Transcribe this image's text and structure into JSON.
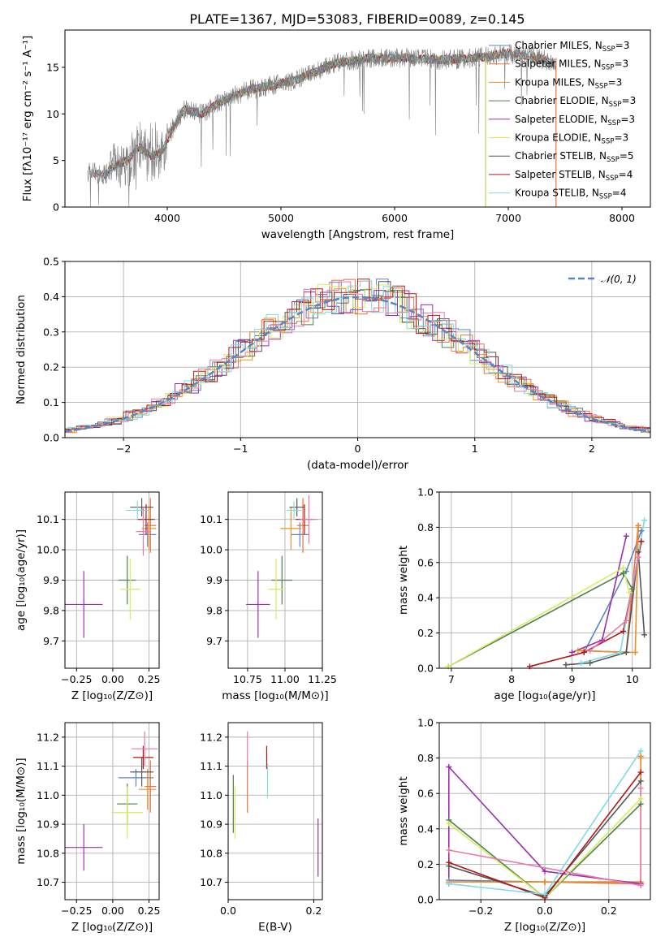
{
  "figure": {
    "title": "PLATE=1367, MJD=53083, FIBERID=0089, z=0.145"
  },
  "colors": {
    "chabrier_miles": "#5b84c4",
    "salpeter_miles": "#e8703a",
    "kroupa_miles": "#e9902a",
    "chabrier_elodie": "#4e7e4e",
    "salpeter_elodie": "#9b2fae",
    "kroupa_elodie": "#d4ee5e",
    "chabrier_stelib": "#555555",
    "salpeter_stelib": "#b01717",
    "kroupa_stelib": "#7fd9e6",
    "data": "#7f7f7f",
    "pink": "#e879a8",
    "grid": "#b0b0b0"
  },
  "chart_data": [
    {
      "id": "spectrum",
      "type": "line",
      "xlabel": "wavelength [Angstrom, rest frame]",
      "ylabel": "Flux [fλ10⁻¹⁷ erg cm⁻² s⁻¹ A⁻¹]",
      "xlim": [
        3100,
        8250
      ],
      "ylim": [
        0,
        19
      ],
      "xticks": [
        "4000",
        "5000",
        "6000",
        "7000",
        "8000"
      ],
      "yticks": [
        "0",
        "5",
        "10",
        "15"
      ],
      "grid": false,
      "legend_position": "right",
      "continuum": {
        "x": [
          3300,
          3450,
          3550,
          3650,
          3750,
          3850,
          3950,
          4050,
          4150,
          4300,
          4500,
          4700,
          4900,
          5100,
          5300,
          5500,
          5800,
          6100,
          6400,
          6700,
          7000,
          7200,
          7400
        ],
        "y": [
          3.8,
          3.5,
          4.5,
          5.0,
          6.5,
          5.5,
          5.8,
          8.5,
          10.5,
          10.0,
          11.5,
          12.5,
          13.0,
          13.5,
          14.5,
          15.5,
          16.0,
          16.0,
          15.8,
          16.0,
          16.5,
          16.2,
          15.5
        ]
      },
      "drop_lines": [
        {
          "name": "Salpeter ELODIE",
          "x": 6800
        },
        {
          "name": "Kroupa ELODIE",
          "x": 6800
        },
        {
          "name": "Salpeter MILES",
          "x": 7420
        }
      ],
      "legend": [
        {
          "label": "Chabrier MILES, N",
          "sub": "SSP",
          "suffix": "=3",
          "color": "chabrier_miles"
        },
        {
          "label": "Salpeter MILES, N",
          "sub": "SSP",
          "suffix": "=3",
          "color": "salpeter_miles"
        },
        {
          "label": "Kroupa MILES, N",
          "sub": "SSP",
          "suffix": "=3",
          "color": "kroupa_miles"
        },
        {
          "label": "Chabrier ELODIE, N",
          "sub": "SSP",
          "suffix": "=3",
          "color": "chabrier_elodie"
        },
        {
          "label": "Salpeter ELODIE, N",
          "sub": "SSP",
          "suffix": "=3",
          "color": "salpeter_elodie"
        },
        {
          "label": "Kroupa ELODIE, N",
          "sub": "SSP",
          "suffix": "=3",
          "color": "kroupa_elodie"
        },
        {
          "label": "Chabrier STELIB, N",
          "sub": "SSP",
          "suffix": "=5",
          "color": "chabrier_stelib"
        },
        {
          "label": "Salpeter STELIB, N",
          "sub": "SSP",
          "suffix": "=4",
          "color": "salpeter_stelib"
        },
        {
          "label": "Kroupa STELIB, N",
          "sub": "SSP",
          "suffix": "=4",
          "color": "kroupa_stelib"
        }
      ]
    },
    {
      "id": "residuals",
      "type": "line",
      "xlabel": "(data-model)/error",
      "ylabel": "Normed distribution",
      "xlim": [
        -2.5,
        2.5
      ],
      "ylim": [
        0,
        0.5
      ],
      "xticks": [
        "−2",
        "−1",
        "0",
        "1",
        "2"
      ],
      "xtick_values": [
        -2,
        -1,
        0,
        1,
        2
      ],
      "yticks": [
        "0.0",
        "0.1",
        "0.2",
        "0.3",
        "0.4",
        "0.5"
      ],
      "ytick_values": [
        0,
        0.1,
        0.2,
        0.3,
        0.4,
        0.5
      ],
      "grid": true,
      "legend_position": "top-right",
      "gaussian_label": "𝒩(0, 1)",
      "gaussian": {
        "mean": 0,
        "sigma": 1
      }
    },
    {
      "id": "age_vs_Z",
      "type": "scatter",
      "xlabel": "Z [log₁₀(Z/Z⊙)]",
      "ylabel": "age  [log₁₀(age/yr)]",
      "xlim": [
        -0.33,
        0.32
      ],
      "ylim": [
        9.61,
        10.19
      ],
      "xticks": [
        "−0.25",
        "0.00",
        "0.25"
      ],
      "xtick_values": [
        -0.25,
        0,
        0.25
      ],
      "yticks": [
        "9.7",
        "9.8",
        "9.9",
        "10.0",
        "10.1"
      ],
      "ytick_values": [
        9.7,
        9.8,
        9.9,
        10.0,
        10.1
      ],
      "grid": true,
      "points": [
        {
          "x": 0.24,
          "y": 10.05,
          "xerr": 0.06,
          "yerr": 0.04,
          "color": "chabrier_miles"
        },
        {
          "x": 0.26,
          "y": 10.08,
          "xerr": 0.04,
          "yerr": 0.09,
          "color": "salpeter_miles"
        },
        {
          "x": 0.25,
          "y": 10.07,
          "xerr": 0.05,
          "yerr": 0.07,
          "color": "kroupa_miles"
        },
        {
          "x": 0.1,
          "y": 9.9,
          "xerr": 0.06,
          "yerr": 0.08,
          "color": "chabrier_elodie"
        },
        {
          "x": -0.2,
          "y": 9.82,
          "xerr": 0.13,
          "yerr": 0.11,
          "color": "salpeter_elodie"
        },
        {
          "x": 0.12,
          "y": 9.87,
          "xerr": 0.07,
          "yerr": 0.1,
          "color": "kroupa_elodie"
        },
        {
          "x": 0.2,
          "y": 10.14,
          "xerr": 0.08,
          "yerr": 0.03,
          "color": "chabrier_stelib"
        },
        {
          "x": 0.23,
          "y": 10.1,
          "xerr": 0.06,
          "yerr": 0.05,
          "color": "salpeter_stelib"
        },
        {
          "x": 0.17,
          "y": 10.13,
          "xerr": 0.08,
          "yerr": 0.03,
          "color": "kroupa_stelib"
        },
        {
          "x": 0.21,
          "y": 10.06,
          "xerr": 0.05,
          "yerr": 0.08,
          "color": "pink"
        }
      ]
    },
    {
      "id": "age_vs_mass",
      "type": "scatter",
      "xlabel": "mass [log₁₀(M/M⊙)]",
      "ylabel": "",
      "xlim": [
        10.62,
        11.25
      ],
      "ylim": [
        9.61,
        10.19
      ],
      "xticks": [
        "10.75",
        "11.00",
        "11.25"
      ],
      "xtick_values": [
        10.75,
        11.0,
        11.25
      ],
      "yticks": [
        "9.7",
        "9.8",
        "9.9",
        "10.0",
        "10.1"
      ],
      "ytick_values": [
        9.7,
        9.8,
        9.9,
        10.0,
        10.1
      ],
      "grid": true,
      "points": [
        {
          "x": 11.1,
          "y": 10.05,
          "xerr": 0.06,
          "yerr": 0.04,
          "color": "chabrier_miles"
        },
        {
          "x": 11.12,
          "y": 10.08,
          "xerr": 0.04,
          "yerr": 0.09,
          "color": "salpeter_miles"
        },
        {
          "x": 11.04,
          "y": 10.07,
          "xerr": 0.07,
          "yerr": 0.07,
          "color": "kroupa_miles"
        },
        {
          "x": 10.98,
          "y": 9.9,
          "xerr": 0.07,
          "yerr": 0.08,
          "color": "chabrier_elodie"
        },
        {
          "x": 10.82,
          "y": 9.82,
          "xerr": 0.08,
          "yerr": 0.11,
          "color": "salpeter_elodie"
        },
        {
          "x": 10.94,
          "y": 9.87,
          "xerr": 0.05,
          "yerr": 0.1,
          "color": "kroupa_elodie"
        },
        {
          "x": 11.08,
          "y": 10.14,
          "xerr": 0.05,
          "yerr": 0.03,
          "color": "chabrier_stelib"
        },
        {
          "x": 11.13,
          "y": 10.1,
          "xerr": 0.06,
          "yerr": 0.05,
          "color": "salpeter_stelib"
        },
        {
          "x": 11.06,
          "y": 10.13,
          "xerr": 0.05,
          "yerr": 0.03,
          "color": "kroupa_stelib"
        },
        {
          "x": 11.16,
          "y": 10.1,
          "xerr": 0.06,
          "yerr": 0.08,
          "color": "pink"
        }
      ]
    },
    {
      "id": "weight_vs_age",
      "type": "line",
      "xlabel": "age  [log₁₀(age/yr)]",
      "ylabel": "mass weight",
      "xlim": [
        6.8,
        10.3
      ],
      "ylim": [
        0,
        1
      ],
      "xticks": [
        "7",
        "8",
        "9",
        "10"
      ],
      "xtick_values": [
        7,
        8,
        9,
        10
      ],
      "yticks": [
        "0.0",
        "0.2",
        "0.4",
        "0.6",
        "0.8",
        "1.0"
      ],
      "ytick_values": [
        0,
        0.2,
        0.4,
        0.6,
        0.8,
        1.0
      ],
      "grid": true,
      "series": [
        {
          "color": "chabrier_miles",
          "x": [
            9.2,
            9.9,
            10.15
          ],
          "y": [
            0.09,
            0.55,
            0.78
          ]
        },
        {
          "color": "salpeter_miles",
          "x": [
            9.2,
            9.9,
            10.1
          ],
          "y": [
            0.1,
            0.09,
            0.81
          ]
        },
        {
          "color": "kroupa_miles",
          "x": [
            9.1,
            10.05,
            10.1
          ],
          "y": [
            0.1,
            0.09,
            0.8
          ]
        },
        {
          "color": "chabrier_elodie",
          "x": [
            6.95,
            9.85,
            10.0
          ],
          "y": [
            0.01,
            0.54,
            0.45
          ]
        },
        {
          "color": "salpeter_elodie",
          "x": [
            9.0,
            9.5,
            9.9
          ],
          "y": [
            0.09,
            0.16,
            0.75
          ]
        },
        {
          "color": "kroupa_elodie",
          "x": [
            6.95,
            9.85,
            9.95
          ],
          "y": [
            0.01,
            0.57,
            0.43
          ]
        },
        {
          "color": "chabrier_stelib",
          "x": [
            8.9,
            9.3,
            9.9,
            10.1,
            10.2
          ],
          "y": [
            0.02,
            0.03,
            0.09,
            0.66,
            0.19
          ]
        },
        {
          "color": "salpeter_stelib",
          "x": [
            8.3,
            9.2,
            9.85,
            10.15
          ],
          "y": [
            0.01,
            0.09,
            0.21,
            0.72
          ]
        },
        {
          "color": "kroupa_stelib",
          "x": [
            9.15,
            9.8,
            10.2
          ],
          "y": [
            0.03,
            0.09,
            0.84
          ]
        },
        {
          "color": "pink",
          "x": [
            9.3,
            9.9,
            10.1
          ],
          "y": [
            0.1,
            0.27,
            0.63
          ]
        }
      ]
    },
    {
      "id": "mass_vs_Z",
      "type": "scatter",
      "xlabel": "Z [log₁₀(Z/Z⊙)]",
      "ylabel": "mass [log₁₀(M/M⊙)]",
      "xlim": [
        -0.33,
        0.32
      ],
      "ylim": [
        10.64,
        11.25
      ],
      "xticks": [
        "−0.25",
        "0.00",
        "0.25"
      ],
      "xtick_values": [
        -0.25,
        0,
        0.25
      ],
      "yticks": [
        "10.7",
        "10.8",
        "10.9",
        "11.0",
        "11.1",
        "11.2"
      ],
      "ytick_values": [
        10.7,
        10.8,
        10.9,
        11.0,
        11.1,
        11.2
      ],
      "grid": true,
      "points": [
        {
          "x": 0.16,
          "y": 11.06,
          "xerr": 0.12,
          "yerr": 0.03,
          "color": "chabrier_miles"
        },
        {
          "x": 0.26,
          "y": 11.03,
          "xerr": 0.04,
          "yerr": 0.09,
          "color": "salpeter_miles"
        },
        {
          "x": 0.24,
          "y": 11.02,
          "xerr": 0.06,
          "yerr": 0.07,
          "color": "kroupa_miles"
        },
        {
          "x": 0.1,
          "y": 10.97,
          "xerr": 0.07,
          "yerr": 0.07,
          "color": "chabrier_elodie"
        },
        {
          "x": -0.2,
          "y": 10.82,
          "xerr": 0.13,
          "yerr": 0.08,
          "color": "salpeter_elodie"
        },
        {
          "x": 0.1,
          "y": 10.94,
          "xerr": 0.11,
          "yerr": 0.09,
          "color": "kroupa_elodie"
        },
        {
          "x": 0.2,
          "y": 11.08,
          "xerr": 0.08,
          "yerr": 0.05,
          "color": "chabrier_stelib"
        },
        {
          "x": 0.21,
          "y": 11.13,
          "xerr": 0.07,
          "yerr": 0.04,
          "color": "salpeter_stelib"
        },
        {
          "x": 0.22,
          "y": 11.16,
          "xerr": 0.09,
          "yerr": 0.06,
          "color": "pink"
        }
      ]
    },
    {
      "id": "mass_vs_EBV",
      "type": "scatter",
      "xlabel": "E(B-V)",
      "ylabel": "",
      "xlim": [
        0,
        0.22
      ],
      "ylim": [
        10.64,
        11.25
      ],
      "xticks": [
        "0.0",
        "0.2"
      ],
      "xtick_values": [
        0,
        0.2
      ],
      "yticks": [
        "10.7",
        "10.8",
        "10.9",
        "11.0",
        "11.1",
        "11.2"
      ],
      "ytick_values": [
        10.7,
        10.8,
        10.9,
        11.0,
        11.1,
        11.2
      ],
      "grid": true,
      "points": [
        {
          "x": 0.012,
          "y": 10.97,
          "yerr": 0.1,
          "color": "chabrier_elodie"
        },
        {
          "x": 0.016,
          "y": 10.94,
          "yerr": 0.09,
          "color": "kroupa_elodie"
        },
        {
          "x": 0.045,
          "y": 11.03,
          "yerr": 0.09,
          "color": "salpeter_miles"
        },
        {
          "x": 0.045,
          "y": 11.16,
          "yerr": 0.06,
          "color": "pink"
        },
        {
          "x": 0.09,
          "y": 11.13,
          "yerr": 0.04,
          "color": "salpeter_stelib"
        },
        {
          "x": 0.092,
          "y": 11.05,
          "yerr": 0.06,
          "color": "kroupa_stelib"
        },
        {
          "x": 0.21,
          "y": 10.82,
          "yerr": 0.1,
          "color": "salpeter_elodie"
        }
      ]
    },
    {
      "id": "weight_vs_Z",
      "type": "line",
      "xlabel": "Z [log₁₀(Z/Z⊙)]",
      "ylabel": "mass weight",
      "xlim": [
        -0.33,
        0.33
      ],
      "ylim": [
        0,
        1
      ],
      "xticks": [
        "−0.2",
        "0.0",
        "0.2"
      ],
      "xtick_values": [
        -0.2,
        0,
        0.2
      ],
      "yticks": [
        "0.0",
        "0.2",
        "0.4",
        "0.6",
        "0.8",
        "1.0"
      ],
      "ytick_values": [
        0,
        0.2,
        0.4,
        0.6,
        0.8,
        1.0
      ],
      "grid": true,
      "series": [
        {
          "color": "chabrier_miles",
          "x": [
            -0.3,
            0.0,
            0.3
          ],
          "y": [
            0.11,
            0.1,
            0.1
          ]
        },
        {
          "color": "salpeter_miles",
          "x": [
            -0.3,
            0.0,
            0.3,
            0.3
          ],
          "y": [
            0.1,
            0.1,
            0.09,
            0.81
          ]
        },
        {
          "color": "kroupa_miles",
          "x": [
            -0.3,
            0.0,
            0.3,
            0.3
          ],
          "y": [
            0.1,
            0.1,
            0.1,
            0.8
          ]
        },
        {
          "color": "chabrier_elodie",
          "x": [
            -0.3,
            0.0,
            0.3
          ],
          "y": [
            0.45,
            0.01,
            0.54
          ]
        },
        {
          "color": "salpeter_elodie",
          "x": [
            -0.3,
            -0.3,
            0.0,
            0.3
          ],
          "y": [
            0.09,
            0.75,
            0.16,
            0.09
          ]
        },
        {
          "color": "kroupa_elodie",
          "x": [
            -0.3,
            0.0,
            0.3
          ],
          "y": [
            0.43,
            0.01,
            0.57
          ]
        },
        {
          "color": "chabrier_stelib",
          "x": [
            -0.3,
            0.0,
            0.3
          ],
          "y": [
            0.19,
            0.02,
            0.67
          ]
        },
        {
          "color": "salpeter_stelib",
          "x": [
            -0.3,
            0.0,
            0.3
          ],
          "y": [
            0.21,
            0.01,
            0.72
          ]
        },
        {
          "color": "kroupa_stelib",
          "x": [
            -0.3,
            0.0,
            0.3
          ],
          "y": [
            0.09,
            0.03,
            0.84
          ]
        },
        {
          "color": "pink",
          "x": [
            -0.3,
            0.3,
            0.3
          ],
          "y": [
            0.28,
            0.08,
            0.63
          ]
        }
      ]
    }
  ]
}
